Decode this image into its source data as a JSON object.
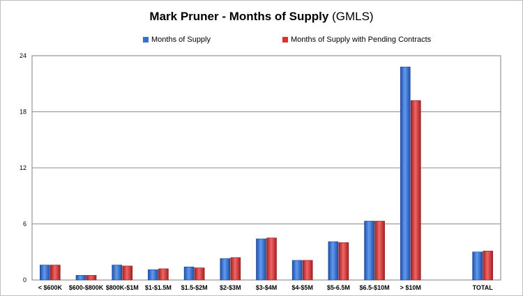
{
  "chart_data": {
    "type": "bar",
    "title": "Mark Pruner - Months of Supply",
    "subtitle": "(GMLS)",
    "categories": [
      "< $600K",
      "$600-$800K",
      "$800K-$1M",
      "$1-$1.5M",
      "$1.5-$2M",
      "$2-$3M",
      "$3-$4M",
      "$4-$5M",
      "$5-6.5M",
      "$6.5-$10M",
      "> $10M",
      "",
      "TOTAL"
    ],
    "series": [
      {
        "name": "Months of Supply",
        "color": "#2e6fd8",
        "values": [
          1.6,
          0.5,
          1.6,
          1.1,
          1.4,
          2.3,
          4.4,
          2.1,
          4.1,
          6.3,
          22.8,
          null,
          3.0
        ]
      },
      {
        "name": "Months of Supply with Pending Contracts",
        "color": "#d83232",
        "values": [
          1.6,
          0.5,
          1.5,
          1.2,
          1.3,
          2.4,
          4.5,
          2.1,
          4.0,
          6.3,
          19.2,
          null,
          3.1
        ]
      }
    ],
    "yticks": [
      0,
      6,
      12,
      18,
      24
    ],
    "ylim": [
      0,
      24
    ],
    "grid": true,
    "legend": "top"
  }
}
